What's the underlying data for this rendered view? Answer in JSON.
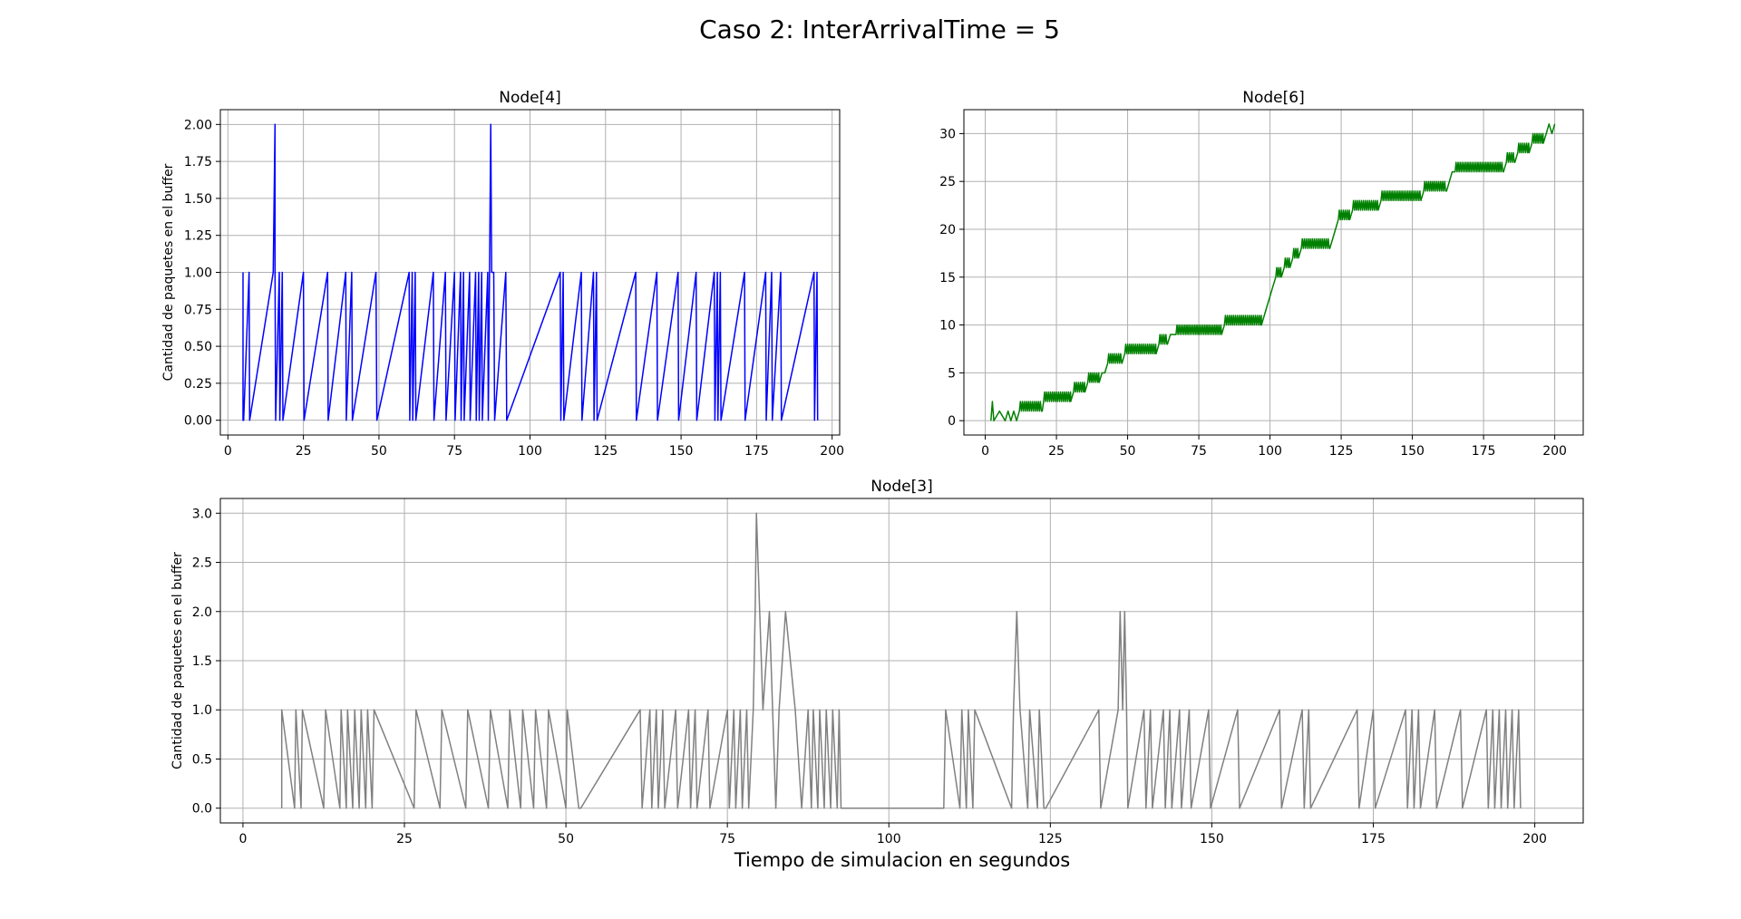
{
  "figure": {
    "title": "Caso 2: InterArrivalTime = 5",
    "xlabel": "Tiempo de simulacion en segundos"
  },
  "chart_data": [
    {
      "type": "line",
      "title": "Node[4]",
      "ylabel": "Cantidad de paquetes en el buffer",
      "xlabel": "",
      "xlim": [
        -2.5,
        202.5
      ],
      "ylim": [
        -0.1,
        2.1
      ],
      "xticks": [
        0,
        25,
        50,
        75,
        100,
        125,
        150,
        175,
        200
      ],
      "xtick_labels": [
        "0",
        "25",
        "50",
        "75",
        "100",
        "125",
        "150",
        "175",
        "200"
      ],
      "yticks": [
        0,
        0.25,
        0.5,
        0.75,
        1,
        1.25,
        1.5,
        1.75,
        2
      ],
      "ytick_labels": [
        "0.00",
        "0.25",
        "0.50",
        "0.75",
        "1.00",
        "1.25",
        "1.50",
        "1.75",
        "2.00"
      ],
      "grid": true,
      "series": [
        {
          "color": "#0000ff",
          "x": [
            5,
            5,
            5.2,
            7,
            7.2,
            15,
            15.6,
            15.6,
            15.8,
            17,
            17.2,
            18,
            18.2,
            25,
            25.2,
            33,
            33.2,
            39,
            39.2,
            41,
            41.2,
            49,
            49.3,
            60,
            60.2,
            61,
            61.2,
            62,
            62.2,
            68,
            68.2,
            72,
            72.2,
            75,
            75.2,
            77,
            77.2,
            78,
            78.2,
            80,
            80.2,
            82,
            82.2,
            83,
            83.2,
            84,
            84.2,
            86,
            86.2,
            87,
            87.3,
            88,
            88.3,
            92,
            92.3,
            110,
            110.2,
            111,
            111.2,
            117,
            117.2,
            121,
            121.2,
            122,
            122.2,
            135,
            135.2,
            142,
            142.2,
            149,
            149.2,
            155,
            155.2,
            161,
            161.2,
            162,
            162.2,
            163,
            163.2,
            171,
            171.2,
            178,
            178.2,
            180,
            180.2,
            183,
            183.2,
            194,
            194.2,
            195,
            195.2
          ],
          "y": [
            1,
            0,
            0,
            1,
            0,
            1,
            2,
            1,
            0,
            1,
            0,
            1,
            0,
            1,
            0,
            1,
            0,
            1,
            0,
            1,
            0,
            1,
            0,
            1,
            0,
            1,
            0,
            1,
            0,
            1,
            0,
            1,
            0,
            1,
            0,
            1,
            0,
            1,
            0,
            1,
            0,
            1,
            0,
            1,
            0,
            1,
            0,
            1,
            0,
            2,
            1,
            1,
            0,
            1,
            0,
            1,
            0,
            1,
            0,
            1,
            0,
            1,
            0,
            1,
            0,
            1,
            0,
            1,
            0,
            1,
            0,
            1,
            0,
            1,
            0,
            1,
            0,
            1,
            0,
            1,
            0,
            1,
            0,
            1,
            0,
            1,
            0,
            1,
            0,
            1,
            0
          ]
        }
      ]
    },
    {
      "type": "line",
      "title": "Node[6]",
      "ylabel": "",
      "xlabel": "",
      "xlim": [
        -7.5,
        210
      ],
      "ylim": [
        -1.5,
        32.5
      ],
      "xticks": [
        0,
        25,
        50,
        75,
        100,
        125,
        150,
        175,
        200
      ],
      "xtick_labels": [
        "0",
        "25",
        "50",
        "75",
        "100",
        "125",
        "150",
        "175",
        "200"
      ],
      "yticks": [
        0,
        5,
        10,
        15,
        20,
        25,
        30
      ],
      "ytick_labels": [
        "0",
        "5",
        "10",
        "15",
        "20",
        "25",
        "30"
      ],
      "grid": true,
      "series": [
        {
          "color": "#008000",
          "x": [
            2,
            2.5,
            3,
            5,
            7,
            8,
            9,
            10,
            11,
            12,
            20,
            20.5,
            30,
            31,
            35,
            36,
            40,
            41,
            42,
            43,
            48,
            49,
            60,
            61,
            64,
            65,
            66,
            67,
            83,
            84,
            97,
            98,
            99,
            100,
            101,
            102,
            104,
            105,
            107,
            108,
            110,
            111,
            121,
            122,
            123,
            124,
            128,
            129,
            138,
            139,
            153,
            154,
            162,
            163,
            164,
            165,
            182,
            183,
            186,
            187,
            191,
            192,
            196,
            197,
            198,
            199,
            200
          ],
          "y": [
            0,
            2,
            0,
            1,
            0,
            1,
            0,
            1,
            0,
            1,
            1,
            2,
            2,
            3,
            3,
            4,
            4,
            5,
            5,
            6,
            6,
            7,
            7,
            8,
            8,
            9,
            9,
            9,
            9,
            10,
            10,
            11,
            12,
            13,
            14,
            15,
            15,
            16,
            16,
            17,
            17,
            18,
            18,
            19,
            20,
            21,
            21,
            22,
            22,
            23,
            23,
            24,
            24,
            25,
            26,
            26,
            26,
            27,
            27,
            28,
            28,
            29,
            29,
            30,
            31,
            30,
            31
          ],
          "jitter": [
            [
              12,
              20
            ],
            [
              20,
              30
            ],
            [
              31,
              35
            ],
            [
              36,
              40
            ],
            [
              43,
              48
            ],
            [
              49,
              60
            ],
            [
              61,
              64
            ],
            [
              67,
              83
            ],
            [
              84,
              97
            ],
            [
              99,
              100
            ],
            [
              102,
              104
            ],
            [
              105,
              107
            ],
            [
              108,
              110
            ],
            [
              111,
              121
            ],
            [
              124,
              128
            ],
            [
              129,
              138
            ],
            [
              139,
              153
            ],
            [
              154,
              162
            ],
            [
              165,
              182
            ],
            [
              183,
              186
            ],
            [
              187,
              191
            ],
            [
              192,
              196
            ],
            [
              197,
              200
            ]
          ]
        }
      ]
    },
    {
      "type": "line",
      "title": "Node[3]",
      "ylabel": "Cantidad de paquetes en el buffer",
      "xlabel": "Tiempo de simulacion en segundos",
      "xlim": [
        -3.5,
        207.5
      ],
      "ylim": [
        -0.15,
        3.15
      ],
      "xticks": [
        0,
        25,
        50,
        75,
        100,
        125,
        150,
        175,
        200
      ],
      "xtick_labels": [
        "0",
        "25",
        "50",
        "75",
        "100",
        "125",
        "150",
        "175",
        "200"
      ],
      "yticks": [
        0,
        0.5,
        1,
        1.5,
        2,
        2.5,
        3
      ],
      "ytick_labels": [
        "0.0",
        "0.5",
        "1.0",
        "1.5",
        "2.0",
        "2.5",
        "3.0"
      ],
      "grid": true,
      "series": [
        {
          "color": "#808080",
          "x": [
            6,
            6,
            8,
            8.2,
            9,
            9.2,
            12.5,
            12.8,
            15,
            15.2,
            16,
            16.2,
            17,
            17.3,
            18,
            18.3,
            19,
            19.3,
            20,
            20.3,
            26.5,
            26.8,
            30.5,
            30.8,
            34.5,
            34.8,
            38,
            38.3,
            41,
            41.3,
            43,
            43.3,
            45,
            45.3,
            47,
            47.3,
            50,
            50.2,
            52,
            52.3,
            61.5,
            61.8,
            63,
            63.3,
            64,
            64.3,
            65,
            65.3,
            67,
            67.3,
            69,
            69.3,
            70,
            70.3,
            72,
            72.3,
            75,
            75.3,
            76,
            76.3,
            77,
            77.3,
            78,
            78.3,
            79,
            79.3,
            79.5,
            80.5,
            81.5,
            82.5,
            83,
            84,
            85.5,
            86.5,
            87.5,
            88,
            88.3,
            89,
            89.3,
            90,
            90.3,
            91,
            91.3,
            92,
            92.3,
            92.6,
            108.5,
            108.8,
            111,
            111.3,
            112,
            112.3,
            113,
            113.3,
            119,
            119.3,
            119.8,
            120.3,
            121.5,
            121.8,
            123,
            123.3,
            124,
            124.3,
            132.5,
            132.8,
            135.5,
            135.8,
            136.2,
            136.5,
            136.8,
            137,
            139.5,
            139.8,
            140.5,
            140.8,
            142.5,
            142.8,
            143.5,
            143.8,
            145,
            145.3,
            146.5,
            146.8,
            149.5,
            149.8,
            154,
            154.3,
            160.5,
            160.8,
            164,
            164.3,
            165,
            165.3,
            172.5,
            172.8,
            175,
            175.3,
            180,
            180.3,
            181,
            181.3,
            182,
            182.3,
            184.5,
            184.8,
            188.5,
            188.8,
            192.5,
            192.8,
            193.5,
            193.8,
            194.5,
            194.8,
            195.5,
            195.8,
            196.5,
            196.8,
            197.5,
            197.8
          ],
          "y": [
            0,
            1,
            0,
            1,
            0,
            1,
            0,
            1,
            0,
            1,
            0,
            1,
            0,
            1,
            0,
            1,
            0,
            1,
            0,
            1,
            0,
            1,
            0,
            1,
            0,
            1,
            0,
            1,
            0,
            1,
            0,
            1,
            0,
            1,
            0,
            1,
            0,
            1,
            0,
            0,
            1,
            0,
            1,
            0,
            1,
            0,
            1,
            0,
            1,
            0,
            1,
            0,
            1,
            0,
            1,
            0,
            1,
            0,
            1,
            0,
            1,
            0,
            1,
            0,
            1,
            2,
            3,
            1,
            2,
            0,
            1,
            2,
            1,
            0,
            1,
            0,
            1,
            0,
            1,
            0,
            1,
            0,
            1,
            0,
            1,
            0,
            0,
            1,
            0,
            1,
            0,
            1,
            0,
            1,
            0,
            1,
            2,
            1,
            0,
            1,
            0,
            1,
            0,
            0,
            1,
            0,
            1,
            2,
            1,
            2,
            1,
            0,
            1,
            0,
            1,
            0,
            1,
            0,
            1,
            0,
            1,
            0,
            1,
            0,
            1,
            0,
            1,
            0,
            1,
            0,
            1,
            0,
            1,
            0,
            1,
            0,
            1,
            0,
            1,
            0,
            1,
            0,
            1,
            0,
            1,
            0,
            1,
            0,
            1,
            0,
            1,
            0,
            1,
            0,
            1,
            0,
            1,
            0,
            1,
            0
          ]
        }
      ]
    }
  ]
}
